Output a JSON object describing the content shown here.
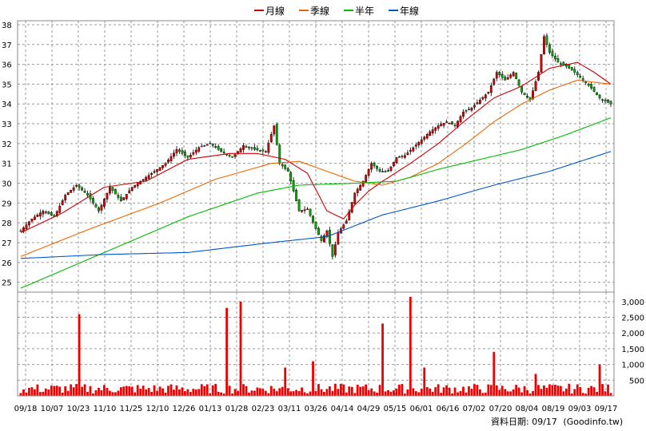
{
  "legend": [
    {
      "label": "月線",
      "color": "#cc0000"
    },
    {
      "label": "季線",
      "color": "#ee6600"
    },
    {
      "label": "半年",
      "color": "#00bb00"
    },
    {
      "label": "年線",
      "color": "#0055cc"
    }
  ],
  "footer": {
    "date_label": "資料日期: 09/17",
    "source": "(Goodinfo.tw)"
  },
  "colors": {
    "up": "#dd0000",
    "down": "#00aa00",
    "volume": "#ee0000",
    "grid": "#999999"
  },
  "chart_data": [
    {
      "type": "candlestick",
      "title": "",
      "ylim": [
        24.5,
        38.2
      ],
      "yticks": [
        "25",
        "26",
        "27",
        "28",
        "29",
        "30",
        "31",
        "32",
        "33",
        "34",
        "35",
        "36",
        "37",
        "38"
      ],
      "xticks": [
        "09/18",
        "10/07",
        "10/23",
        "11/10",
        "11/25",
        "12/10",
        "12/26",
        "01/13",
        "01/28",
        "02/23",
        "03/11",
        "03/26",
        "04/14",
        "04/29",
        "05/15",
        "06/01",
        "06/16",
        "07/02",
        "07/20",
        "08/04",
        "08/19",
        "09/03",
        "09/17"
      ],
      "close_anchors": [
        [
          0,
          27.6
        ],
        [
          4,
          28.2
        ],
        [
          8,
          28.6
        ],
        [
          12,
          28.3
        ],
        [
          16,
          29.4
        ],
        [
          20,
          29.9
        ],
        [
          24,
          29.4
        ],
        [
          28,
          28.6
        ],
        [
          32,
          29.8
        ],
        [
          36,
          29.1
        ],
        [
          40,
          29.8
        ],
        [
          44,
          30.2
        ],
        [
          48,
          30.6
        ],
        [
          52,
          31.0
        ],
        [
          56,
          31.7
        ],
        [
          60,
          31.3
        ],
        [
          64,
          31.8
        ],
        [
          68,
          32.0
        ],
        [
          72,
          31.6
        ],
        [
          76,
          31.3
        ],
        [
          80,
          31.9
        ],
        [
          84,
          31.7
        ],
        [
          88,
          31.6
        ],
        [
          91,
          32.9
        ],
        [
          93,
          31.0
        ],
        [
          96,
          30.6
        ],
        [
          98,
          29.6
        ],
        [
          100,
          28.6
        ],
        [
          103,
          28.7
        ],
        [
          106,
          27.7
        ],
        [
          108,
          27.1
        ],
        [
          110,
          27.6
        ],
        [
          112,
          26.3
        ],
        [
          114,
          27.5
        ],
        [
          117,
          28.1
        ],
        [
          120,
          29.5
        ],
        [
          123,
          30.1
        ],
        [
          126,
          31.0
        ],
        [
          129,
          30.6
        ],
        [
          132,
          30.6
        ],
        [
          135,
          31.3
        ],
        [
          138,
          31.4
        ],
        [
          141,
          31.8
        ],
        [
          144,
          32.2
        ],
        [
          147,
          32.6
        ],
        [
          150,
          32.9
        ],
        [
          153,
          33.1
        ],
        [
          156,
          32.9
        ],
        [
          159,
          33.6
        ],
        [
          162,
          33.8
        ],
        [
          165,
          34.2
        ],
        [
          168,
          34.6
        ],
        [
          171,
          35.6
        ],
        [
          174,
          35.2
        ],
        [
          177,
          35.6
        ],
        [
          180,
          34.6
        ],
        [
          183,
          34.2
        ],
        [
          186,
          35.6
        ],
        [
          188,
          37.4
        ],
        [
          190,
          36.6
        ],
        [
          193,
          36.1
        ],
        [
          196,
          35.9
        ],
        [
          199,
          35.6
        ],
        [
          202,
          35.2
        ],
        [
          205,
          34.8
        ],
        [
          208,
          34.3
        ],
        [
          212,
          34.0
        ]
      ],
      "ma_anchors": {
        "ma20": [
          [
            0,
            27.5
          ],
          [
            15,
            28.5
          ],
          [
            30,
            29.8
          ],
          [
            45,
            30.1
          ],
          [
            60,
            31.2
          ],
          [
            75,
            31.5
          ],
          [
            85,
            31.5
          ],
          [
            95,
            31.2
          ],
          [
            103,
            30.5
          ],
          [
            110,
            28.6
          ],
          [
            116,
            28.2
          ],
          [
            120,
            28.9
          ],
          [
            125,
            29.6
          ],
          [
            130,
            30.1
          ],
          [
            140,
            31.0
          ],
          [
            150,
            32.0
          ],
          [
            160,
            33.2
          ],
          [
            170,
            34.3
          ],
          [
            180,
            34.9
          ],
          [
            190,
            35.8
          ],
          [
            200,
            36.1
          ],
          [
            206,
            35.6
          ],
          [
            212,
            35.0
          ]
        ],
        "ma60": [
          [
            0,
            26.3
          ],
          [
            25,
            27.7
          ],
          [
            50,
            29.0
          ],
          [
            70,
            30.2
          ],
          [
            90,
            31.0
          ],
          [
            100,
            31.1
          ],
          [
            110,
            30.6
          ],
          [
            120,
            30.1
          ],
          [
            130,
            29.9
          ],
          [
            140,
            30.3
          ],
          [
            150,
            31.0
          ],
          [
            160,
            32.0
          ],
          [
            170,
            33.1
          ],
          [
            180,
            34.0
          ],
          [
            190,
            34.7
          ],
          [
            200,
            35.2
          ],
          [
            212,
            35.0
          ]
        ],
        "ma120": [
          [
            0,
            24.7
          ],
          [
            30,
            26.5
          ],
          [
            60,
            28.3
          ],
          [
            85,
            29.5
          ],
          [
            100,
            29.9
          ],
          [
            120,
            30.0
          ],
          [
            135,
            30.1
          ],
          [
            150,
            30.7
          ],
          [
            165,
            31.2
          ],
          [
            180,
            31.7
          ],
          [
            195,
            32.4
          ],
          [
            212,
            33.3
          ]
        ],
        "ma240": [
          [
            0,
            26.2
          ],
          [
            30,
            26.4
          ],
          [
            60,
            26.5
          ],
          [
            90,
            27.0
          ],
          [
            110,
            27.3
          ],
          [
            130,
            28.4
          ],
          [
            150,
            29.1
          ],
          [
            170,
            29.9
          ],
          [
            190,
            30.6
          ],
          [
            212,
            31.6
          ]
        ]
      }
    },
    {
      "type": "bar",
      "title": "",
      "ylim": [
        0,
        3300
      ],
      "yticks": [
        "500",
        "1,000",
        "1,500",
        "2,000",
        "2,500",
        "3,000"
      ],
      "baseline": 200,
      "spikes": [
        [
          21,
          2600
        ],
        [
          74,
          2800
        ],
        [
          79,
          3000
        ],
        [
          95,
          900
        ],
        [
          105,
          1100
        ],
        [
          130,
          2300
        ],
        [
          140,
          3150
        ],
        [
          145,
          900
        ],
        [
          170,
          1400
        ],
        [
          185,
          700
        ],
        [
          208,
          1000
        ]
      ],
      "unit": ""
    }
  ]
}
